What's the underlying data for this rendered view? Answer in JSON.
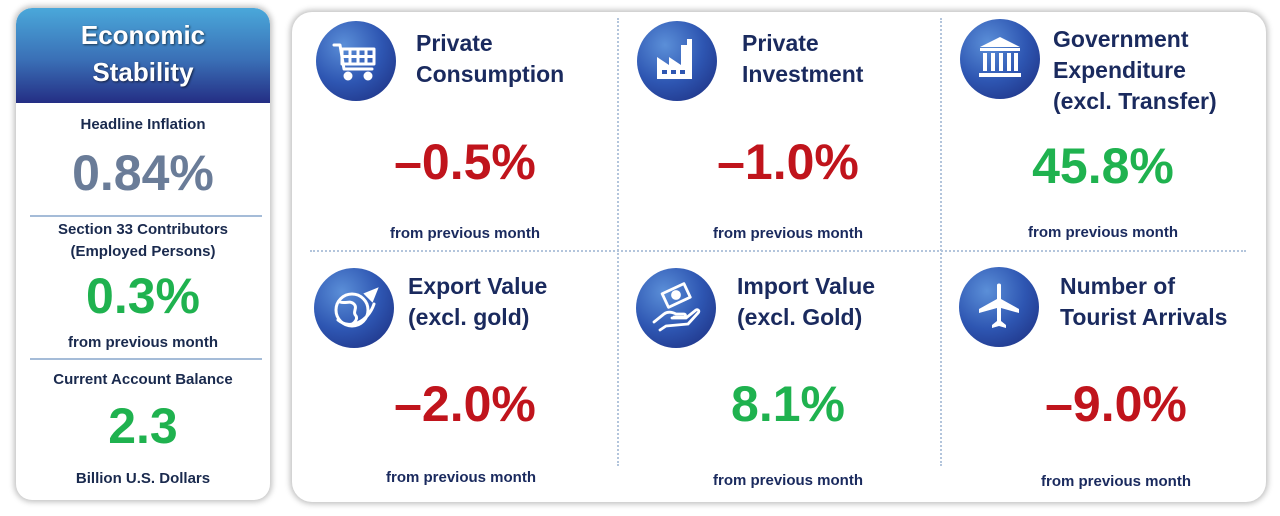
{
  "stability": {
    "title_line1": "Economic",
    "title_line2": "Stability",
    "inflation_label": "Headline Inflation",
    "inflation_value": "0.84%",
    "contrib_label_line1": "Section 33 Contributors",
    "contrib_label_line2": "(Employed Persons)",
    "contrib_value": "0.3%",
    "contrib_sub": "from previous month",
    "current_account_label": "Current Account Balance",
    "current_account_value": "2.3",
    "current_account_unit": "Billion U.S. Dollars"
  },
  "indicators": [
    {
      "title_lines": [
        "Private",
        "Consumption"
      ],
      "value": "–0.5%",
      "sub": "from previous month",
      "icon": "shopping-cart-icon",
      "trend": "negative"
    },
    {
      "title_lines": [
        "Private",
        "Investment"
      ],
      "value": "–1.0%",
      "sub": "from previous month",
      "icon": "factory-icon",
      "trend": "negative"
    },
    {
      "title_lines": [
        "Government",
        "Expenditure",
        "(excl. Transfer)"
      ],
      "value": "45.8%",
      "sub": "from previous month",
      "icon": "government-building-icon",
      "trend": "positive"
    },
    {
      "title_lines": [
        "Export Value",
        "(excl. gold)"
      ],
      "value": "–2.0%",
      "sub": "from previous month",
      "icon": "globe-airplane-icon",
      "trend": "negative"
    },
    {
      "title_lines": [
        "Import Value",
        "(excl. Gold)"
      ],
      "value": "8.1%",
      "sub": "from previous month",
      "icon": "hand-money-icon",
      "trend": "positive"
    },
    {
      "title_lines": [
        "Number of",
        "Tourist Arrivals"
      ],
      "value": "–9.0%",
      "sub": "from previous month",
      "icon": "airplane-icon",
      "trend": "negative"
    }
  ],
  "colors": {
    "positive": "#1fb24f",
    "negative": "#c0141c",
    "neutral": "#6a7c98",
    "header_gradient_top": "#4aa8da",
    "header_gradient_bottom": "#242e84",
    "title_text": "#1a2a5e"
  }
}
